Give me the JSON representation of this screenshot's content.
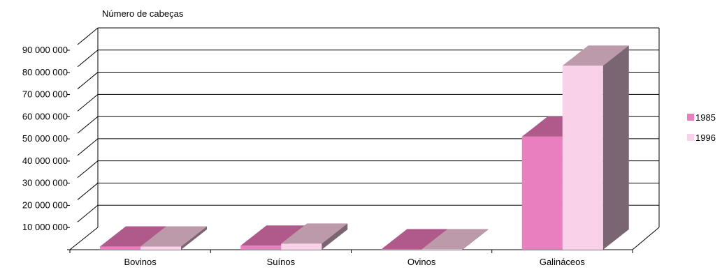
{
  "chart_data": {
    "type": "bar",
    "style": "3d-clustered-column",
    "title": "",
    "ylabel": "Número de cabeças",
    "xlabel": "",
    "categories": [
      "Bovinos",
      "Suínos",
      "Ovinos",
      "Galináceos"
    ],
    "series": [
      {
        "name": "1985",
        "values": [
          1400000,
          1800000,
          200000,
          51000000
        ],
        "color": "#e97fbf",
        "top_color": "#b05a8c",
        "side_color": "#8a4a6e"
      },
      {
        "name": "1996",
        "values": [
          1400000,
          2700000,
          200000,
          83000000
        ],
        "color": "#f9d2e9",
        "top_color": "#bd9aaa",
        "side_color": "#7a6572"
      }
    ],
    "ylim": [
      0,
      90000000
    ],
    "yticks": [
      10000000,
      20000000,
      30000000,
      40000000,
      50000000,
      60000000,
      70000000,
      80000000,
      90000000
    ],
    "ytick_labels": [
      "10 000 000",
      "20 000 000",
      "30 000 000",
      "40 000 000",
      "50 000 000",
      "60 000 000",
      "70 000 000",
      "80 000 000",
      "90 000 000"
    ],
    "grid": true,
    "legend_position": "right"
  }
}
